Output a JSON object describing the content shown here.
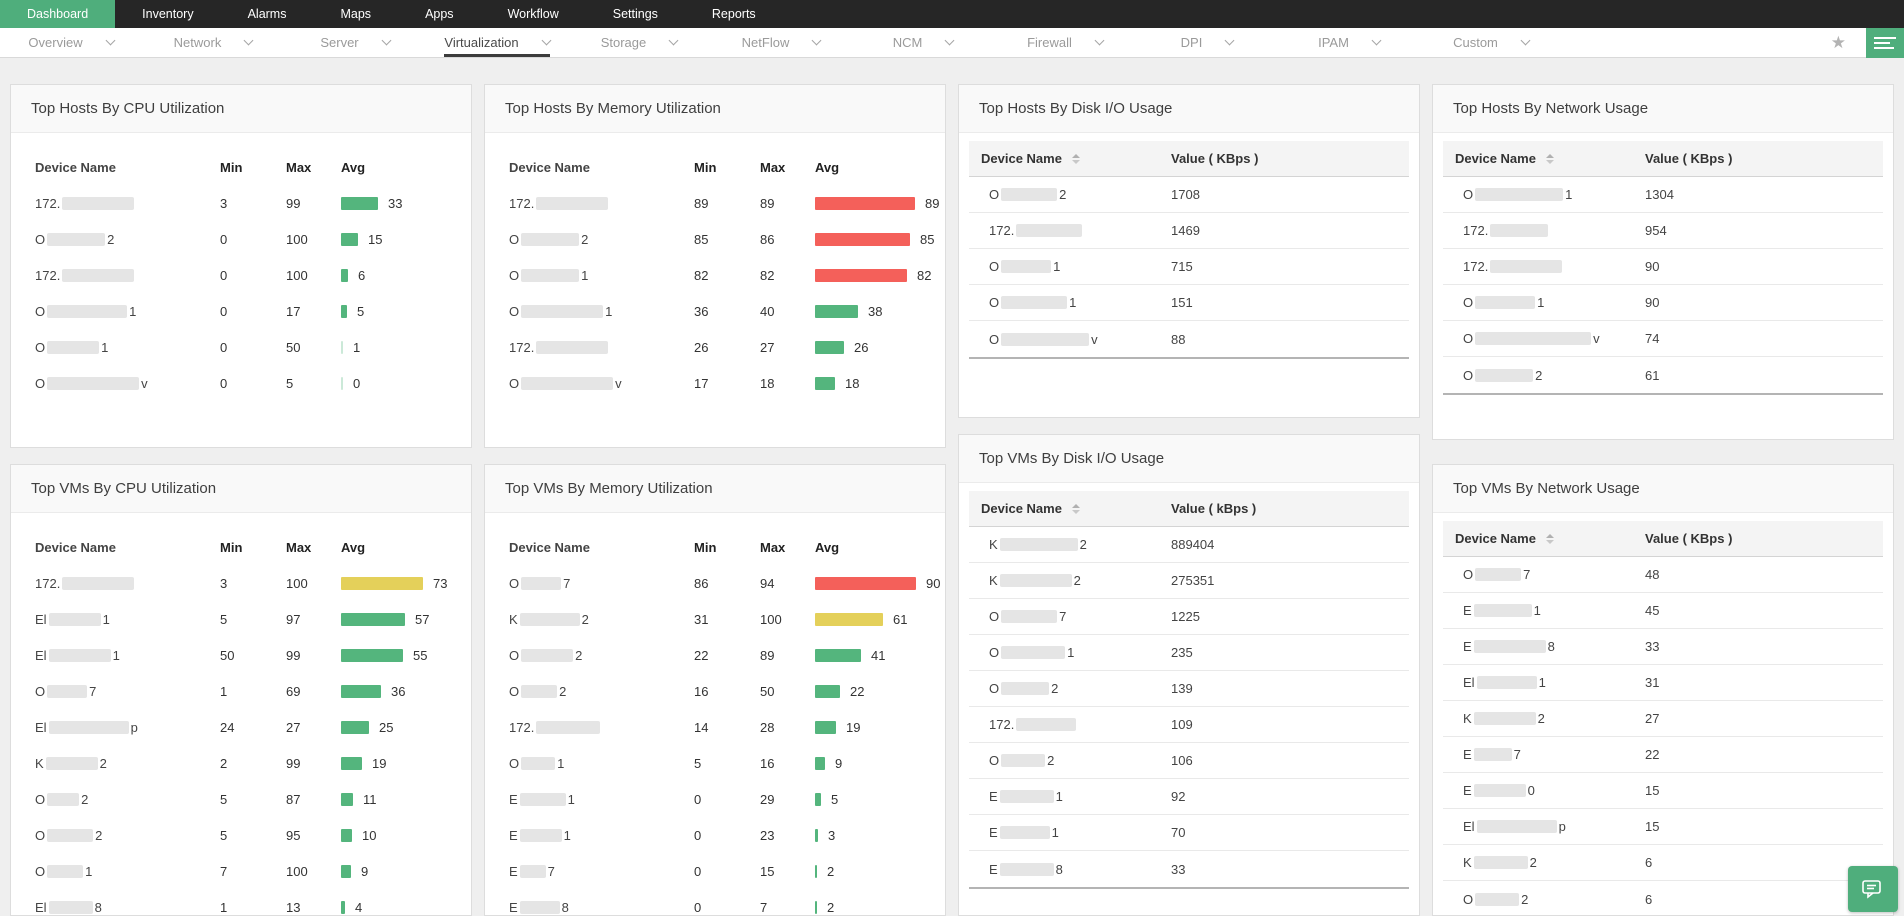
{
  "topnav": {
    "items": [
      {
        "label": "Dashboard",
        "active": true
      },
      {
        "label": "Inventory"
      },
      {
        "label": "Alarms"
      },
      {
        "label": "Maps"
      },
      {
        "label": "Apps"
      },
      {
        "label": "Workflow"
      },
      {
        "label": "Settings"
      },
      {
        "label": "Reports"
      }
    ]
  },
  "subnav": {
    "items": [
      {
        "label": "Overview"
      },
      {
        "label": "Network"
      },
      {
        "label": "Server"
      },
      {
        "label": "Virtualization",
        "active": true
      },
      {
        "label": "Storage"
      },
      {
        "label": "NetFlow"
      },
      {
        "label": "NCM"
      },
      {
        "label": "Firewall"
      },
      {
        "label": "DPI"
      },
      {
        "label": "IPAM"
      },
      {
        "label": "Custom"
      }
    ]
  },
  "icons": {
    "star": "★"
  },
  "colors": {
    "g": "#54b57d",
    "y": "#e4d05a",
    "r": "#f4605a",
    "accent": "#4fae7c",
    "nav_bg": "#262626"
  },
  "widgets": [
    {
      "id": "hosts_cpu",
      "title": "Top Hosts By CPU Utilization",
      "type": "bars",
      "columns": {
        "device": "Device Name",
        "min": "Min",
        "max": "Max",
        "avg": "Avg"
      },
      "rows": [
        {
          "p": "172.",
          "r": 72,
          "s": "",
          "min": 3,
          "max": 99,
          "avg": 33,
          "c": "g"
        },
        {
          "p": "O",
          "r": 58,
          "s": "2",
          "min": 0,
          "max": 100,
          "avg": 15,
          "c": "g"
        },
        {
          "p": "172.",
          "r": 72,
          "s": "",
          "min": 0,
          "max": 100,
          "avg": 6,
          "c": "g"
        },
        {
          "p": "O",
          "r": 80,
          "s": "1",
          "min": 0,
          "max": 17,
          "avg": 5,
          "c": "g"
        },
        {
          "p": "O",
          "r": 52,
          "s": "1",
          "min": 0,
          "max": 50,
          "avg": 1,
          "c": "g"
        },
        {
          "p": "O",
          "r": 92,
          "s": "v",
          "min": 0,
          "max": 5,
          "avg": 0,
          "c": "g"
        }
      ]
    },
    {
      "id": "hosts_memory",
      "title": "Top Hosts By Memory Utilization",
      "type": "bars",
      "columns": {
        "device": "Device Name",
        "min": "Min",
        "max": "Max",
        "avg": "Avg"
      },
      "rows": [
        {
          "p": "172.",
          "r": 72,
          "s": "",
          "min": 89,
          "max": 89,
          "avg": 89,
          "c": "r"
        },
        {
          "p": "O",
          "r": 58,
          "s": "2",
          "min": 85,
          "max": 86,
          "avg": 85,
          "c": "r"
        },
        {
          "p": "O",
          "r": 58,
          "s": "1",
          "min": 82,
          "max": 82,
          "avg": 82,
          "c": "r"
        },
        {
          "p": "O",
          "r": 82,
          "s": "1",
          "min": 36,
          "max": 40,
          "avg": 38,
          "c": "g"
        },
        {
          "p": "172.",
          "r": 72,
          "s": "",
          "min": 26,
          "max": 27,
          "avg": 26,
          "c": "g"
        },
        {
          "p": "O",
          "r": 92,
          "s": "v",
          "min": 17,
          "max": 18,
          "avg": 18,
          "c": "g"
        }
      ]
    },
    {
      "id": "hosts_disk",
      "title": "Top Hosts By Disk I/O Usage",
      "type": "values",
      "columns": {
        "device": "Device Name",
        "value": "Value ( KBps )"
      },
      "rows": [
        {
          "p": "O",
          "r": 56,
          "s": "2",
          "v": "1708"
        },
        {
          "p": "172.",
          "r": 66,
          "s": "",
          "v": "1469"
        },
        {
          "p": "O",
          "r": 50,
          "s": "1",
          "v": "715"
        },
        {
          "p": "O",
          "r": 66,
          "s": "1",
          "v": "151"
        },
        {
          "p": "O",
          "r": 88,
          "s": "v",
          "v": "88"
        }
      ]
    },
    {
      "id": "hosts_network",
      "title": "Top Hosts By Network Usage",
      "type": "values",
      "columns": {
        "device": "Device Name",
        "value": "Value ( KBps )"
      },
      "rows": [
        {
          "p": "O",
          "r": 88,
          "s": "1",
          "v": "1304"
        },
        {
          "p": "172.",
          "r": 58,
          "s": "",
          "v": "954"
        },
        {
          "p": "172.",
          "r": 72,
          "s": "",
          "v": "90"
        },
        {
          "p": "O",
          "r": 60,
          "s": "1",
          "v": "90"
        },
        {
          "p": "O",
          "r": 116,
          "s": "v",
          "v": "74"
        },
        {
          "p": "O",
          "r": 58,
          "s": "2",
          "v": "61"
        }
      ]
    },
    {
      "id": "vms_cpu",
      "title": "Top VMs By CPU Utilization",
      "type": "bars",
      "columns": {
        "device": "Device Name",
        "min": "Min",
        "max": "Max",
        "avg": "Avg"
      },
      "rows": [
        {
          "p": "172.",
          "r": 72,
          "s": "",
          "min": 3,
          "max": 100,
          "avg": 73,
          "c": "y"
        },
        {
          "p": "El",
          "r": 52,
          "s": "1",
          "min": 5,
          "max": 97,
          "avg": 57,
          "c": "g"
        },
        {
          "p": "El",
          "r": 62,
          "s": "1",
          "min": 50,
          "max": 99,
          "avg": 55,
          "c": "g"
        },
        {
          "p": "O",
          "r": 40,
          "s": "7",
          "min": 1,
          "max": 69,
          "avg": 36,
          "c": "g"
        },
        {
          "p": "El",
          "r": 80,
          "s": "p",
          "min": 24,
          "max": 27,
          "avg": 25,
          "c": "g"
        },
        {
          "p": "K",
          "r": 52,
          "s": "2",
          "min": 2,
          "max": 99,
          "avg": 19,
          "c": "g"
        },
        {
          "p": "O",
          "r": 32,
          "s": "2",
          "min": 5,
          "max": 87,
          "avg": 11,
          "c": "g"
        },
        {
          "p": "O",
          "r": 46,
          "s": "2",
          "min": 5,
          "max": 95,
          "avg": 10,
          "c": "g"
        },
        {
          "p": "O",
          "r": 36,
          "s": "1",
          "min": 7,
          "max": 100,
          "avg": 9,
          "c": "g"
        },
        {
          "p": "El",
          "r": 44,
          "s": "8",
          "min": 1,
          "max": 13,
          "avg": 4,
          "c": "g"
        }
      ]
    },
    {
      "id": "vms_memory",
      "title": "Top VMs By Memory Utilization",
      "type": "bars",
      "columns": {
        "device": "Device Name",
        "min": "Min",
        "max": "Max",
        "avg": "Avg"
      },
      "rows": [
        {
          "p": "O",
          "r": 40,
          "s": "7",
          "min": 86,
          "max": 94,
          "avg": 90,
          "c": "r"
        },
        {
          "p": "K",
          "r": 60,
          "s": "2",
          "min": 31,
          "max": 100,
          "avg": 61,
          "c": "y"
        },
        {
          "p": "O",
          "r": 52,
          "s": "2",
          "min": 22,
          "max": 89,
          "avg": 41,
          "c": "g"
        },
        {
          "p": "O",
          "r": 36,
          "s": "2",
          "min": 16,
          "max": 50,
          "avg": 22,
          "c": "g"
        },
        {
          "p": "172.",
          "r": 64,
          "s": "",
          "min": 14,
          "max": 28,
          "avg": 19,
          "c": "g"
        },
        {
          "p": "O",
          "r": 34,
          "s": "1",
          "min": 5,
          "max": 16,
          "avg": 9,
          "c": "g"
        },
        {
          "p": "E",
          "r": 46,
          "s": "1",
          "min": 0,
          "max": 29,
          "avg": 5,
          "c": "g"
        },
        {
          "p": "E",
          "r": 42,
          "s": "1",
          "min": 0,
          "max": 23,
          "avg": 3,
          "c": "g"
        },
        {
          "p": "E",
          "r": 26,
          "s": "7",
          "min": 0,
          "max": 15,
          "avg": 2,
          "c": "g"
        },
        {
          "p": "E",
          "r": 40,
          "s": "8",
          "min": 0,
          "max": 7,
          "avg": 2,
          "c": "g"
        }
      ]
    },
    {
      "id": "vms_disk",
      "title": "Top VMs By Disk I/O Usage",
      "type": "values",
      "columns": {
        "device": "Device Name",
        "value": "Value ( kBps )"
      },
      "rows": [
        {
          "p": "K",
          "r": 78,
          "s": "2",
          "v": "889404"
        },
        {
          "p": "K",
          "r": 72,
          "s": "2",
          "v": "275351"
        },
        {
          "p": "O",
          "r": 56,
          "s": "7",
          "v": "1225"
        },
        {
          "p": "O",
          "r": 64,
          "s": "1",
          "v": "235"
        },
        {
          "p": "O",
          "r": 48,
          "s": "2",
          "v": "139"
        },
        {
          "p": "172.",
          "r": 60,
          "s": "",
          "v": "109"
        },
        {
          "p": "O",
          "r": 44,
          "s": "2",
          "v": "106"
        },
        {
          "p": "E",
          "r": 54,
          "s": "1",
          "v": "92"
        },
        {
          "p": "E",
          "r": 50,
          "s": "1",
          "v": "70"
        },
        {
          "p": "E",
          "r": 54,
          "s": "8",
          "v": "33"
        }
      ]
    },
    {
      "id": "vms_network",
      "title": "Top VMs By Network Usage",
      "type": "values",
      "columns": {
        "device": "Device Name",
        "value": "Value ( KBps )"
      },
      "rows": [
        {
          "p": "O",
          "r": 46,
          "s": "7",
          "v": "48"
        },
        {
          "p": "E",
          "r": 58,
          "s": "1",
          "v": "45"
        },
        {
          "p": "E",
          "r": 72,
          "s": "8",
          "v": "33"
        },
        {
          "p": "El",
          "r": 60,
          "s": "1",
          "v": "31"
        },
        {
          "p": "K",
          "r": 62,
          "s": "2",
          "v": "27"
        },
        {
          "p": "E",
          "r": 38,
          "s": "7",
          "v": "22"
        },
        {
          "p": "E",
          "r": 52,
          "s": "0",
          "v": "15"
        },
        {
          "p": "El",
          "r": 80,
          "s": "p",
          "v": "15"
        },
        {
          "p": "K",
          "r": 54,
          "s": "2",
          "v": "6"
        },
        {
          "p": "O",
          "r": 44,
          "s": "2",
          "v": "6"
        }
      ]
    }
  ]
}
